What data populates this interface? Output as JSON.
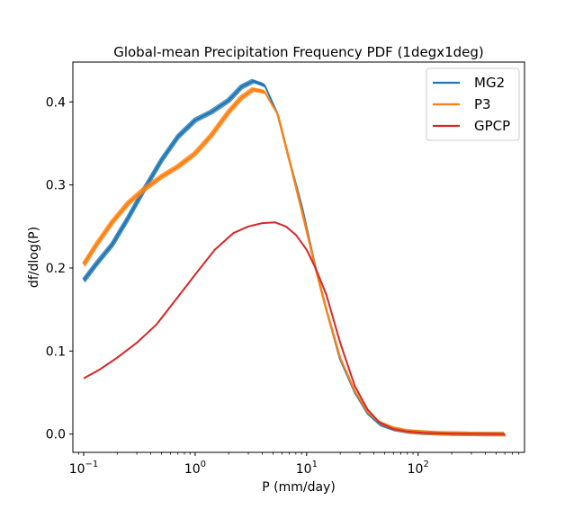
{
  "chart_data": {
    "type": "line",
    "title": "Global-mean Precipitation Frequency PDF (1degx1deg)",
    "xlabel": "P (mm/day)",
    "ylabel": "df/dlog(P)",
    "xscale": "log",
    "xlim": [
      0.08,
      900
    ],
    "ylim": [
      -0.022,
      0.448
    ],
    "xticks": [
      {
        "value": 0.1,
        "base": "10",
        "exp": "−1"
      },
      {
        "value": 1,
        "base": "10",
        "exp": "0"
      },
      {
        "value": 10,
        "base": "10",
        "exp": "1"
      },
      {
        "value": 100,
        "base": "10",
        "exp": "2"
      }
    ],
    "yticks": [
      {
        "value": 0.0,
        "label": "0.0"
      },
      {
        "value": 0.1,
        "label": "0.1"
      },
      {
        "value": 0.2,
        "label": "0.2"
      },
      {
        "value": 0.3,
        "label": "0.3"
      },
      {
        "value": 0.4,
        "label": "0.4"
      }
    ],
    "legend_position": "top-right",
    "series": [
      {
        "name": "MG2",
        "color": "#1f77b4",
        "x": [
          0.1,
          0.13,
          0.18,
          0.25,
          0.35,
          0.5,
          0.7,
          1.0,
          1.4,
          2.0,
          2.6,
          3.3,
          4.2,
          5.5,
          7,
          9,
          12,
          15,
          20,
          27,
          35,
          45,
          60,
          80,
          110,
          150,
          200,
          300,
          400,
          600
        ],
        "y": [
          0.185,
          0.205,
          0.228,
          0.26,
          0.295,
          0.33,
          0.358,
          0.378,
          0.388,
          0.402,
          0.418,
          0.425,
          0.42,
          0.385,
          0.33,
          0.275,
          0.2,
          0.15,
          0.09,
          0.05,
          0.025,
          0.012,
          0.006,
          0.003,
          0.0015,
          0.0008,
          0.0005,
          0.0002,
          0.0001,
          0.0
        ]
      },
      {
        "name": "P3",
        "color": "#ff7f0e",
        "x": [
          0.1,
          0.13,
          0.18,
          0.25,
          0.35,
          0.5,
          0.7,
          1.0,
          1.4,
          2.0,
          2.6,
          3.3,
          4.2,
          5.5,
          7,
          9,
          12,
          15,
          20,
          27,
          35,
          45,
          60,
          80,
          110,
          150,
          200,
          300,
          400,
          600
        ],
        "y": [
          0.204,
          0.228,
          0.255,
          0.278,
          0.295,
          0.31,
          0.322,
          0.338,
          0.36,
          0.388,
          0.405,
          0.415,
          0.412,
          0.385,
          0.33,
          0.27,
          0.2,
          0.15,
          0.092,
          0.052,
          0.027,
          0.014,
          0.007,
          0.0035,
          0.002,
          0.001,
          0.0006,
          0.0002,
          0.0001,
          0.0
        ]
      },
      {
        "name": "GPCP",
        "color": "#d62728",
        "x": [
          0.1,
          0.14,
          0.2,
          0.3,
          0.45,
          0.7,
          1.0,
          1.5,
          2.2,
          3.0,
          4.0,
          5.2,
          6.5,
          8,
          10,
          12,
          15,
          20,
          27,
          35,
          45,
          60,
          80,
          110,
          150,
          200,
          300,
          400,
          600
        ],
        "y": [
          0.067,
          0.078,
          0.092,
          0.11,
          0.132,
          0.165,
          0.192,
          0.222,
          0.242,
          0.25,
          0.254,
          0.255,
          0.25,
          0.24,
          0.222,
          0.2,
          0.168,
          0.11,
          0.058,
          0.03,
          0.014,
          0.006,
          0.003,
          0.0015,
          0.0008,
          0.0004,
          0.0002,
          0.0001,
          0.0
        ]
      }
    ]
  }
}
